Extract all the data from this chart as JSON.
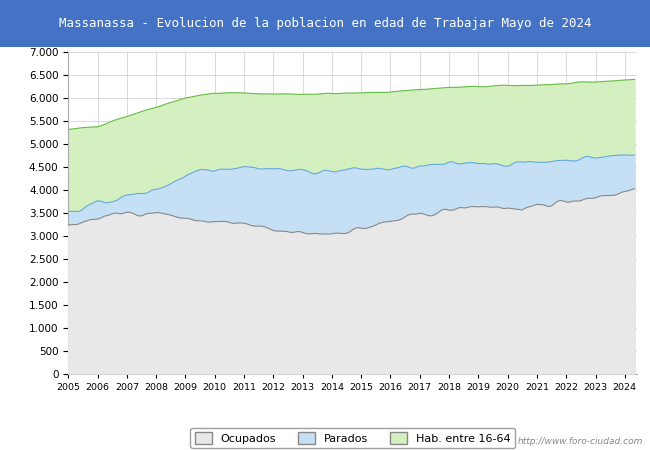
{
  "title": "Massanassa - Evolucion de la poblacion en edad de Trabajar Mayo de 2024",
  "title_bg_color": "#4472C4",
  "title_text_color": "white",
  "ylim": [
    0,
    7000
  ],
  "yticks": [
    0,
    500,
    1000,
    1500,
    2000,
    2500,
    3000,
    3500,
    4000,
    4500,
    5000,
    5500,
    6000,
    6500,
    7000
  ],
  "color_hab": "#d5f0c0",
  "color_parados": "#c5e0f5",
  "color_ocupados": "#e8e8e8",
  "color_line_hab": "#66bb44",
  "color_line_parados": "#66aadd",
  "color_line_ocupados": "#888888",
  "watermark": "http://www.foro-ciudad.com",
  "legend_labels": [
    "Ocupados",
    "Parados",
    "Hab. entre 16-64"
  ],
  "background_plot": "white",
  "grid_color": "#cccccc",
  "x_year_labels": [
    2005,
    2006,
    2007,
    2008,
    2009,
    2010,
    2011,
    2012,
    2013,
    2014,
    2015,
    2016,
    2017,
    2018,
    2019,
    2020,
    2021,
    2022,
    2023,
    2024
  ]
}
